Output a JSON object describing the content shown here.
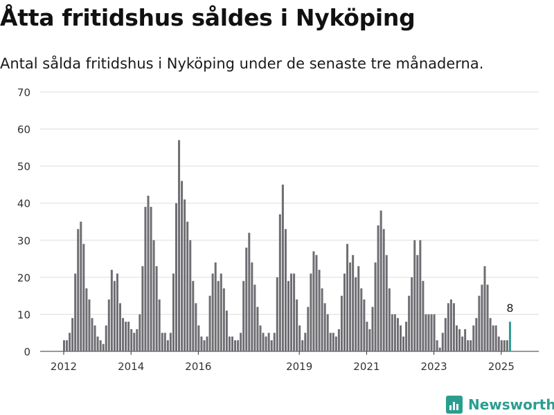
{
  "title": "Åtta fritidshus såldes i Nyköping",
  "subtitle": "Antal sålda fritidshus i Nyköping under de senaste tre månaderna.",
  "brand": "Newsworthy",
  "colors": {
    "bar": "#6e6d72",
    "highlight": "#2a9d8f",
    "grid": "#dddddd",
    "brand": "#2a9d8f"
  },
  "chart_data": {
    "type": "bar",
    "title": "Åtta fritidshus såldes i Nyköping",
    "subtitle": "Antal sålda fritidshus i Nyköping under de senaste tre månaderna.",
    "xlabel": "",
    "ylabel": "",
    "ylim": [
      0,
      70
    ],
    "yticks": [
      0,
      10,
      20,
      30,
      40,
      50,
      60,
      70
    ],
    "xtick_labels": [
      "2012",
      "2014",
      "2016",
      "2019",
      "2021",
      "2023",
      "2025"
    ],
    "grid": true,
    "highlight_label": "8",
    "values": [
      3,
      3,
      5,
      9,
      21,
      33,
      35,
      29,
      17,
      14,
      9,
      7,
      4,
      3,
      2,
      7,
      14,
      22,
      19,
      21,
      13,
      9,
      8,
      8,
      6,
      5,
      6,
      10,
      23,
      39,
      42,
      39,
      30,
      23,
      14,
      5,
      5,
      3,
      5,
      21,
      40,
      57,
      46,
      41,
      35,
      30,
      19,
      13,
      7,
      4,
      3,
      4,
      15,
      21,
      24,
      19,
      21,
      17,
      11,
      4,
      4,
      3,
      3,
      5,
      19,
      28,
      32,
      24,
      18,
      12,
      7,
      5,
      4,
      5,
      3,
      5,
      20,
      37,
      45,
      33,
      19,
      21,
      21,
      14,
      7,
      3,
      5,
      12,
      21,
      27,
      26,
      22,
      17,
      13,
      10,
      5,
      5,
      4,
      6,
      15,
      21,
      29,
      24,
      26,
      20,
      23,
      17,
      14,
      8,
      6,
      12,
      24,
      34,
      38,
      33,
      26,
      17,
      10,
      10,
      9,
      7,
      4,
      8,
      15,
      20,
      30,
      26,
      30,
      19,
      10,
      10,
      10,
      10,
      3,
      1,
      5,
      9,
      13,
      14,
      13,
      7,
      6,
      4,
      6,
      3,
      3,
      7,
      9,
      15,
      18,
      23,
      18,
      9,
      7,
      7,
      4,
      3,
      3,
      3,
      8
    ]
  }
}
